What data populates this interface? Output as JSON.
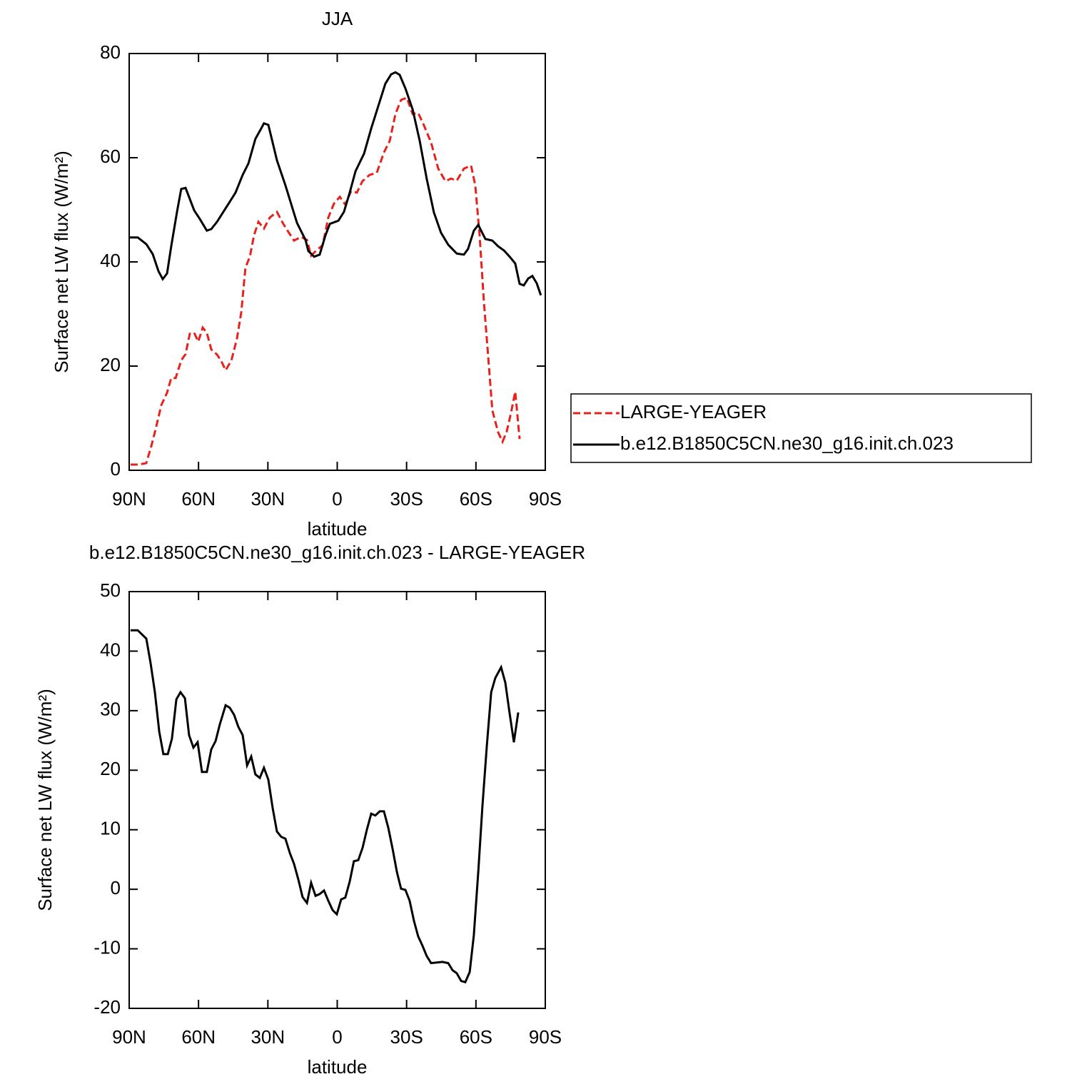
{
  "chart_data": [
    {
      "type": "line",
      "title": "JJA",
      "x_label": "latitude",
      "y_label": "Surface net LW flux (W/m²)",
      "xlim": [
        90,
        -90
      ],
      "xticks": [
        {
          "value": 90,
          "label": "90N"
        },
        {
          "value": 60,
          "label": "60N"
        },
        {
          "value": 30,
          "label": "30N"
        },
        0,
        {
          "value": -30,
          "label": "30S"
        },
        {
          "value": -60,
          "label": "60S"
        },
        {
          "value": -90,
          "label": "90S"
        }
      ],
      "ylim": [
        0,
        80
      ],
      "yticks": [
        0,
        20,
        40,
        60,
        80
      ],
      "legend": "right",
      "series": [
        {
          "name": "LARGE-YEAGER",
          "color": "#e8211c",
          "dashed": true,
          "x": [
            89.4,
            85.7,
            82.6,
            80.4,
            78.6,
            76.1,
            73.6,
            71.8,
            69.9,
            67.5,
            65.6,
            63.8,
            61.9,
            60.1,
            58.2,
            56.4,
            54.5,
            52,
            50.2,
            48.3,
            45.8,
            43.4,
            41.5,
            39.7,
            37.8,
            36,
            34.1,
            31.7,
            29.2,
            26.1,
            23.6,
            21.8,
            18.7,
            15.6,
            13.1,
            11.3,
            8.8,
            6.3,
            3.9,
            1.4,
            -1.1,
            -3.5,
            -6,
            -8.5,
            -10.9,
            -14,
            -17.1,
            -20.2,
            -22.7,
            -25.2,
            -27.6,
            -30.1,
            -32.6,
            -35,
            -37.5,
            -40.6,
            -43.7,
            -46.8,
            -49.2,
            -51.7,
            -54.8,
            -57.9,
            -59.7,
            -61.6,
            -63.4,
            -65.3,
            -67.1,
            -69.6,
            -71.5,
            -73.3,
            -75.2,
            -77,
            -78.9
          ],
          "values": [
            1.1,
            1.1,
            1.4,
            4.7,
            7.8,
            12.5,
            14.9,
            17.7,
            17.7,
            21.1,
            22.3,
            26.2,
            26.4,
            24.7,
            27.4,
            26.4,
            23.2,
            22.2,
            21,
            19.2,
            21.1,
            25.2,
            30.4,
            38.9,
            41,
            45.1,
            47.7,
            46.4,
            48.5,
            49.6,
            47.5,
            46.2,
            44.1,
            44.8,
            44.2,
            41.2,
            42.3,
            43.2,
            48.5,
            51.2,
            52.5,
            51,
            53.6,
            53.3,
            55.5,
            56.7,
            57.1,
            61,
            63.2,
            68.4,
            71.1,
            71.5,
            68.4,
            68.6,
            66.2,
            62.9,
            57.9,
            55.5,
            56,
            55.6,
            57.9,
            58.5,
            54.7,
            45.1,
            32.7,
            21.8,
            11.5,
            7.3,
            5.5,
            7.4,
            11.1,
            15.1,
            6
          ]
        },
        {
          "name": "b.e12.B1850C5CN.ne30_g16.init.ch.023",
          "color": "#000000",
          "dashed": false,
          "x": [
            90,
            86.3,
            82.6,
            79.8,
            77.3,
            75.5,
            73.6,
            71.8,
            69.3,
            67.5,
            65.6,
            61.9,
            59.4,
            56.4,
            54.5,
            52,
            47.7,
            44,
            40.9,
            38.4,
            37.2,
            35.4,
            32.9,
            31.7,
            29.8,
            26.1,
            22.4,
            17.4,
            13.7,
            12.5,
            10,
            7.6,
            5.1,
            3.2,
            -0.5,
            -2.9,
            -5.4,
            -7.9,
            -11.6,
            -14.7,
            -17.1,
            -20.8,
            -23.3,
            -25.2,
            -27,
            -29.5,
            -32.6,
            -35.7,
            -38.7,
            -41.8,
            -44.9,
            -48,
            -51.7,
            -54.8,
            -56.6,
            -59.1,
            -61,
            -64.1,
            -67.1,
            -69.6,
            -72.1,
            -74.6,
            -77,
            -78.9,
            -80.7,
            -82.6,
            -84.4,
            -86.3,
            -88.1
          ],
          "values": [
            44.7,
            44.7,
            43.4,
            41.5,
            38.2,
            36.7,
            37.8,
            43,
            49.6,
            54,
            54.2,
            49.9,
            48.2,
            46,
            46.3,
            47.7,
            50.7,
            53.3,
            56.7,
            58.9,
            60.8,
            63.6,
            65.6,
            66.6,
            66.3,
            59.5,
            54.7,
            47.5,
            44.2,
            42.1,
            41,
            41.4,
            45.1,
            47.3,
            47.9,
            49.6,
            53.3,
            57.4,
            60.8,
            65.6,
            69,
            74.2,
            76,
            76.4,
            75.9,
            73.3,
            69.3,
            63.2,
            56,
            49.5,
            45.6,
            43.3,
            41.6,
            41.4,
            42.5,
            46,
            47.1,
            44.4,
            44.1,
            43,
            42.2,
            41,
            39.7,
            35.8,
            35.5,
            36.8,
            37.3,
            35.9,
            33.6
          ]
        }
      ]
    },
    {
      "type": "line",
      "title": "b.e12.B1850C5CN.ne30_g16.init.ch.023 - LARGE-YEAGER",
      "x_label": "latitude",
      "y_label": "Surface net LW flux (W/m²)",
      "xlim": [
        90,
        -90
      ],
      "xticks": [
        {
          "value": 90,
          "label": "90N"
        },
        {
          "value": 60,
          "label": "60N"
        },
        {
          "value": 30,
          "label": "30N"
        },
        0,
        {
          "value": -30,
          "label": "30S"
        },
        {
          "value": -60,
          "label": "60S"
        },
        {
          "value": -90,
          "label": "90S"
        }
      ],
      "ylim": [
        -20,
        50
      ],
      "yticks": [
        -20,
        -10,
        0,
        10,
        20,
        30,
        40,
        50
      ],
      "series": [
        {
          "color": "#000000",
          "dashed": false,
          "x": [
            89.4,
            86.3,
            82.6,
            80.7,
            78.9,
            77,
            75.2,
            73.3,
            71.5,
            69.6,
            67.8,
            65.9,
            64.1,
            62.2,
            60.4,
            58.5,
            56.4,
            54.5,
            52.6,
            50.8,
            48.3,
            46.5,
            44.6,
            42.8,
            40.9,
            39,
            37.2,
            35.4,
            33.5,
            31.7,
            29.8,
            27.9,
            26.1,
            24.2,
            22.4,
            20.5,
            18.7,
            16.8,
            15,
            13.1,
            11.3,
            9.4,
            7.6,
            5.7,
            3.9,
            2,
            0.2,
            -1.7,
            -3.5,
            -5.4,
            -7.2,
            -9.1,
            -11,
            -12.8,
            -14.7,
            -16.5,
            -18.4,
            -20.2,
            -22.1,
            -24,
            -25.8,
            -27.6,
            -29.5,
            -31.3,
            -33.2,
            -35,
            -36.9,
            -38.7,
            -40.6,
            -43.1,
            -45.5,
            -48,
            -49.9,
            -51.7,
            -53.6,
            -55.4,
            -57.3,
            -59.1,
            -61,
            -62.8,
            -64.7,
            -66.6,
            -68.4,
            -70.9,
            -72.7,
            -74.6,
            -76.4,
            -78.3
          ],
          "values": [
            43.5,
            43.5,
            42.1,
            37.9,
            33.1,
            26.5,
            22.7,
            22.7,
            25.3,
            31.9,
            33.1,
            32.1,
            25.9,
            23.8,
            24.7,
            19.7,
            19.7,
            23.5,
            24.9,
            27.7,
            30.9,
            30.5,
            29.3,
            27.3,
            25.9,
            20.8,
            22.3,
            19.3,
            18.7,
            20.4,
            18.4,
            13.6,
            9.7,
            8.8,
            8.5,
            6.1,
            4.3,
            1.6,
            -1.3,
            -2.3,
            1.1,
            -1.1,
            -0.8,
            -0.2,
            -1.9,
            -3.5,
            -4.2,
            -1.7,
            -1.4,
            1.3,
            4.7,
            4.9,
            7,
            10,
            12.7,
            12.4,
            13.1,
            13.1,
            10.3,
            6.7,
            2.9,
            0.1,
            -0.1,
            -1.9,
            -5.3,
            -7.9,
            -9.5,
            -11.2,
            -12.4,
            -12.3,
            -12.2,
            -12.4,
            -13.6,
            -14.1,
            -15.4,
            -15.6,
            -13.9,
            -7.7,
            2.9,
            13.9,
            24.1,
            33.1,
            35.5,
            37.3,
            34.7,
            29.5,
            24.7,
            29.7
          ]
        }
      ]
    }
  ]
}
